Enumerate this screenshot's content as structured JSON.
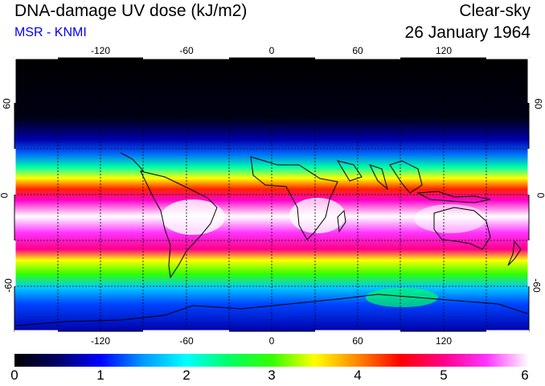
{
  "header": {
    "title": "DNA-damage UV dose (kJ/m2)",
    "source": "MSR - KNMI",
    "sky": "Clear-sky",
    "date": "26 January 1964"
  },
  "map": {
    "lon_ticks": [
      "-120",
      "-60",
      "0",
      "60",
      "120"
    ],
    "lat_ticks": [
      "60",
      "0",
      "-60"
    ],
    "grid": true,
    "source_color": "#0000ee"
  },
  "colorbar": {
    "ticks": [
      "0",
      "1",
      "2",
      "3",
      "4",
      "5",
      "6"
    ],
    "range": [
      0,
      6
    ],
    "palette": [
      "#000000",
      "#000066",
      "#0000ff",
      "#0099ff",
      "#00ffff",
      "#00ff66",
      "#33ff00",
      "#ffff00",
      "#ff8800",
      "#ff0000",
      "#ff0088",
      "#ff33ff",
      "#ffffff"
    ]
  }
}
